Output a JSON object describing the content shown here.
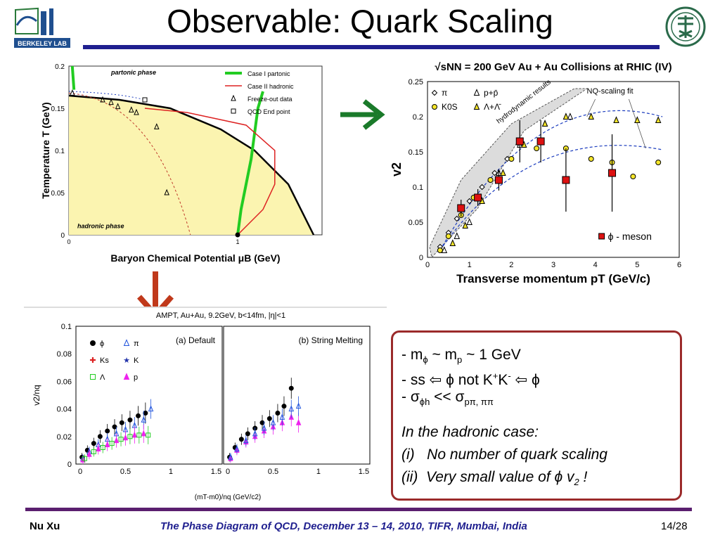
{
  "slide": {
    "title": "Observable: Quark Scaling",
    "logo_left_text": "BERKELEY LAB",
    "footer": {
      "author": "Nu Xu",
      "conference": "The Phase Diagram of QCD, December 13 – 14, 2010, TIFR, Mumbai, India",
      "page": "14/28"
    },
    "colors": {
      "title_rule": "#1f1f8f",
      "footer_rule": "#5a1f6f",
      "box_border": "#9b2a2a",
      "green_arrow": "#1a7a2a",
      "red_arrow": "#c0391b"
    },
    "notes": {
      "line1": {
        "pre": "- m",
        "sub1": "ϕ",
        "mid": " ~ m",
        "sub2": "p",
        "post": " ~ 1 GeV"
      },
      "line2": {
        "pre": "- ss ",
        "arrow1": "⇦",
        "mid1": " ϕ  not K",
        "sup1": "+",
        "mid2": "K",
        "sup2": "-",
        "arrow2": " ⇦ ",
        "post": "ϕ"
      },
      "line3": {
        "pre": "- σ",
        "sub1": "ϕh",
        "mid": " << σ",
        "sub2": "pπ, ππ"
      },
      "line4": "In the hadronic case:",
      "line5_num": "(i)",
      "line5": "No number of quark scaling",
      "line6_num": "(ii)",
      "line6_pre": "Very small value of ϕ v",
      "line6_sub": "2",
      "line6_post": " !"
    }
  },
  "chart_data": [
    {
      "type": "line",
      "xlabel": "Baryon Chemical Potential μB (GeV)",
      "ylabel": "Temperature T (GeV)",
      "xlim": [
        0,
        1.5
      ],
      "ylim": [
        0,
        0.2
      ],
      "x_ticks": [
        "0",
        "1"
      ],
      "y_ticks": [
        "0",
        "0.05",
        "0.1",
        "0.15",
        "0.2"
      ],
      "region_labels": [
        "partonic phase",
        "hadronic phase"
      ],
      "legend": [
        "Case I partonic",
        "Case II hadronic",
        "Freeze-out data",
        "QCD End point"
      ],
      "boundary": {
        "x": [
          0,
          0.3,
          0.6,
          0.9,
          1.1,
          1.3,
          1.45
        ],
        "y": [
          0.165,
          0.16,
          0.15,
          0.125,
          0.1,
          0.06,
          0.0
        ]
      },
      "freezeout": {
        "x": [
          0.02,
          0.2,
          0.25,
          0.29,
          0.37,
          0.4,
          0.52,
          0.58
        ],
        "y": [
          0.168,
          0.16,
          0.157,
          0.152,
          0.148,
          0.145,
          0.128,
          0.05
        ]
      },
      "endpoint": {
        "x": 0.45,
        "y": 0.16
      },
      "green_path": {
        "x": [
          1.0,
          1.02,
          1.05,
          1.08,
          1.1,
          1.12,
          1.15
        ],
        "y": [
          0.0,
          0.03,
          0.06,
          0.09,
          0.12,
          0.15,
          0.17
        ]
      },
      "red_path": {
        "x": [
          1.0,
          1.15,
          1.22,
          1.22,
          1.05,
          0.7,
          0.45
        ],
        "y": [
          0.0,
          0.03,
          0.06,
          0.1,
          0.13,
          0.145,
          0.15
        ]
      }
    },
    {
      "type": "scatter",
      "title": "√sNN = 200 GeV Au + Au Collisions at RHIC (IV)",
      "xlabel": "Transverse momentum pT (GeV/c)",
      "ylabel": "v2",
      "xlim": [
        0,
        6
      ],
      "ylim": [
        0,
        0.25
      ],
      "x_ticks": [
        "0",
        "1",
        "2",
        "3",
        "4",
        "5",
        "6"
      ],
      "y_ticks": [
        "0",
        "0.05",
        "0.1",
        "0.15",
        "0.2",
        "0.25"
      ],
      "annotations": [
        "hydrodynamic results",
        "NQ-scaling fit",
        "ϕ - meson"
      ],
      "legend": [
        "π",
        "p+p̄",
        "K0S",
        "Λ+Λ̄"
      ],
      "series": [
        {
          "name": "π",
          "x": [
            0.3,
            0.5,
            0.7,
            1.0,
            1.3,
            1.6,
            1.9,
            2.2
          ],
          "y": [
            0.015,
            0.035,
            0.055,
            0.08,
            0.1,
            0.12,
            0.14,
            0.16
          ]
        },
        {
          "name": "p+p̄",
          "x": [
            0.4,
            0.7,
            1.0,
            1.3,
            1.7,
            2.2,
            2.8,
            3.4
          ],
          "y": [
            0.01,
            0.03,
            0.05,
            0.08,
            0.12,
            0.16,
            0.19,
            0.2
          ]
        },
        {
          "name": "K0S",
          "x": [
            0.3,
            0.5,
            0.8,
            1.1,
            1.5,
            2.0,
            2.6,
            3.3,
            3.9,
            4.4,
            4.9,
            5.5
          ],
          "y": [
            0.01,
            0.03,
            0.06,
            0.085,
            0.11,
            0.14,
            0.155,
            0.155,
            0.14,
            0.135,
            0.115,
            0.135
          ]
        },
        {
          "name": "Λ+Λ̄",
          "x": [
            0.6,
            0.9,
            1.3,
            1.8,
            2.3,
            2.8,
            3.3,
            3.9,
            4.5,
            5.0,
            5.5
          ],
          "y": [
            0.02,
            0.045,
            0.08,
            0.12,
            0.16,
            0.19,
            0.2,
            0.2,
            0.195,
            0.195,
            0.195
          ]
        },
        {
          "name": "ϕ - meson",
          "x": [
            0.8,
            1.2,
            1.7,
            2.2,
            2.7,
            3.3,
            4.4
          ],
          "y": [
            0.07,
            0.085,
            0.11,
            0.165,
            0.165,
            0.11,
            0.12
          ],
          "err": [
            0.012,
            0.012,
            0.015,
            0.03,
            0.03,
            0.045,
            0.055
          ]
        }
      ]
    },
    {
      "type": "scatter",
      "title": "AMPT, Au+Au, 9.2GeV, b<14fm, |η|<1",
      "xlabel": "(mT-m0)/nq (GeV/c2)",
      "ylabel": "v2/nq",
      "xlim": [
        0,
        1.5
      ],
      "ylim": [
        0,
        0.1
      ],
      "x_ticks": [
        "0",
        "0.5",
        "1",
        "1.5"
      ],
      "y_ticks": [
        "0",
        "0.02",
        "0.04",
        "0.06",
        "0.08",
        "0.1"
      ],
      "panels": [
        "(a) Default",
        "(b) String Melting"
      ],
      "legend": [
        "ϕ",
        "π",
        "Ks",
        "K",
        "Λ",
        "p"
      ],
      "series": [
        {
          "name": "ϕ",
          "panel": 0,
          "x": [
            0.02,
            0.08,
            0.15,
            0.22,
            0.3,
            0.38,
            0.46,
            0.55,
            0.64,
            0.72
          ],
          "y": [
            0.005,
            0.01,
            0.015,
            0.02,
            0.024,
            0.027,
            0.03,
            0.032,
            0.035,
            0.037
          ]
        },
        {
          "name": "π",
          "panel": 0,
          "x": [
            0.03,
            0.1,
            0.2,
            0.3,
            0.4,
            0.5,
            0.6,
            0.7,
            0.78
          ],
          "y": [
            0.004,
            0.009,
            0.014,
            0.018,
            0.022,
            0.025,
            0.028,
            0.032,
            0.04
          ]
        },
        {
          "name": "p",
          "panel": 0,
          "x": [
            0.03,
            0.1,
            0.2,
            0.3,
            0.4,
            0.5,
            0.6,
            0.7
          ],
          "y": [
            0.003,
            0.007,
            0.011,
            0.014,
            0.017,
            0.019,
            0.021,
            0.022
          ]
        },
        {
          "name": "Λ",
          "panel": 0,
          "x": [
            0.05,
            0.15,
            0.25,
            0.35,
            0.45,
            0.55,
            0.65,
            0.75
          ],
          "y": [
            0.004,
            0.009,
            0.012,
            0.015,
            0.018,
            0.02,
            0.021,
            0.021
          ]
        },
        {
          "name": "ϕ",
          "panel": 1,
          "x": [
            0.02,
            0.08,
            0.15,
            0.22,
            0.3,
            0.38,
            0.46,
            0.55,
            0.62,
            0.7
          ],
          "y": [
            0.005,
            0.012,
            0.018,
            0.022,
            0.026,
            0.03,
            0.033,
            0.037,
            0.042,
            0.055
          ]
        },
        {
          "name": "p",
          "panel": 1,
          "x": [
            0.03,
            0.1,
            0.2,
            0.3,
            0.4,
            0.5,
            0.6,
            0.7,
            0.78
          ],
          "y": [
            0.004,
            0.01,
            0.016,
            0.02,
            0.024,
            0.027,
            0.03,
            0.034,
            0.03
          ]
        },
        {
          "name": "π",
          "panel": 1,
          "x": [
            0.03,
            0.1,
            0.2,
            0.3,
            0.4,
            0.5,
            0.6,
            0.7,
            0.78
          ],
          "y": [
            0.005,
            0.011,
            0.017,
            0.022,
            0.026,
            0.03,
            0.034,
            0.04,
            0.042
          ]
        }
      ]
    }
  ]
}
